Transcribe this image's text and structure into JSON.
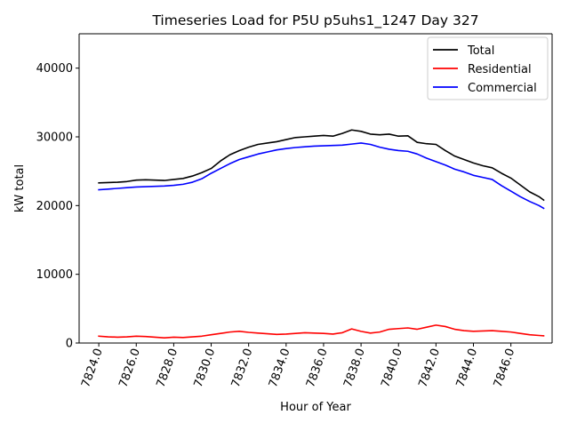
{
  "chart_data": {
    "type": "line",
    "title": "Timeseries Load for P5U p5uhs1_1247  Day 327",
    "xlabel": "Hour of Year",
    "ylabel": "kW total",
    "xlim": [
      7822.95,
      7848.2
    ],
    "ylim": [
      0,
      45000
    ],
    "yticks": [
      0,
      10000,
      20000,
      30000,
      40000
    ],
    "ytick_labels": [
      "0",
      "10000",
      "20000",
      "30000",
      "40000"
    ],
    "xticks": [
      7824,
      7826,
      7828,
      7830,
      7832,
      7834,
      7836,
      7838,
      7840,
      7842,
      7844,
      7846
    ],
    "xtick_labels": [
      "7824.0",
      "7826.0",
      "7828.0",
      "7830.0",
      "7832.0",
      "7834.0",
      "7836.0",
      "7838.0",
      "7840.0",
      "7842.0",
      "7844.0",
      "7846.0"
    ],
    "legend_position": "upper right",
    "series": [
      {
        "name": "Total",
        "color": "#000000",
        "points": [
          [
            7824.0,
            23300
          ],
          [
            7824.5,
            23350
          ],
          [
            7825.0,
            23400
          ],
          [
            7825.5,
            23500
          ],
          [
            7826.0,
            23700
          ],
          [
            7826.5,
            23750
          ],
          [
            7827.0,
            23700
          ],
          [
            7827.5,
            23650
          ],
          [
            7828.0,
            23800
          ],
          [
            7828.5,
            23950
          ],
          [
            7829.0,
            24300
          ],
          [
            7829.5,
            24800
          ],
          [
            7830.0,
            25400
          ],
          [
            7830.5,
            26500
          ],
          [
            7831.0,
            27400
          ],
          [
            7831.5,
            28000
          ],
          [
            7832.0,
            28500
          ],
          [
            7832.5,
            28900
          ],
          [
            7833.0,
            29100
          ],
          [
            7833.5,
            29300
          ],
          [
            7834.0,
            29600
          ],
          [
            7834.5,
            29900
          ],
          [
            7835.0,
            30000
          ],
          [
            7835.5,
            30100
          ],
          [
            7836.0,
            30200
          ],
          [
            7836.5,
            30100
          ],
          [
            7837.0,
            30500
          ],
          [
            7837.5,
            31000
          ],
          [
            7838.0,
            30800
          ],
          [
            7838.5,
            30400
          ],
          [
            7839.0,
            30300
          ],
          [
            7839.5,
            30400
          ],
          [
            7840.0,
            30100
          ],
          [
            7840.5,
            30150
          ],
          [
            7841.0,
            29200
          ],
          [
            7841.5,
            29000
          ],
          [
            7842.0,
            28900
          ],
          [
            7842.5,
            28000
          ],
          [
            7843.0,
            27200
          ],
          [
            7843.5,
            26700
          ],
          [
            7844.0,
            26200
          ],
          [
            7844.5,
            25800
          ],
          [
            7845.0,
            25500
          ],
          [
            7845.5,
            24700
          ],
          [
            7846.0,
            24000
          ],
          [
            7846.5,
            23000
          ],
          [
            7847.0,
            22000
          ],
          [
            7847.5,
            21300
          ],
          [
            7847.75,
            20800
          ]
        ]
      },
      {
        "name": "Residential",
        "color": "#ff0000",
        "points": [
          [
            7824.0,
            1000
          ],
          [
            7824.5,
            900
          ],
          [
            7825.0,
            850
          ],
          [
            7825.5,
            900
          ],
          [
            7826.0,
            1000
          ],
          [
            7826.5,
            950
          ],
          [
            7827.0,
            850
          ],
          [
            7827.5,
            750
          ],
          [
            7828.0,
            850
          ],
          [
            7828.5,
            800
          ],
          [
            7829.0,
            900
          ],
          [
            7829.5,
            1000
          ],
          [
            7830.0,
            1200
          ],
          [
            7830.5,
            1400
          ],
          [
            7831.0,
            1600
          ],
          [
            7831.5,
            1700
          ],
          [
            7832.0,
            1550
          ],
          [
            7832.5,
            1450
          ],
          [
            7833.0,
            1350
          ],
          [
            7833.5,
            1250
          ],
          [
            7834.0,
            1300
          ],
          [
            7834.5,
            1400
          ],
          [
            7835.0,
            1500
          ],
          [
            7835.5,
            1450
          ],
          [
            7836.0,
            1400
          ],
          [
            7836.5,
            1300
          ],
          [
            7837.0,
            1500
          ],
          [
            7837.5,
            2050
          ],
          [
            7838.0,
            1700
          ],
          [
            7838.5,
            1450
          ],
          [
            7839.0,
            1600
          ],
          [
            7839.5,
            2000
          ],
          [
            7840.0,
            2100
          ],
          [
            7840.5,
            2200
          ],
          [
            7841.0,
            2000
          ],
          [
            7841.5,
            2300
          ],
          [
            7842.0,
            2600
          ],
          [
            7842.5,
            2400
          ],
          [
            7843.0,
            2000
          ],
          [
            7843.5,
            1800
          ],
          [
            7844.0,
            1700
          ],
          [
            7844.5,
            1750
          ],
          [
            7845.0,
            1800
          ],
          [
            7845.5,
            1700
          ],
          [
            7846.0,
            1600
          ],
          [
            7846.5,
            1400
          ],
          [
            7847.0,
            1200
          ],
          [
            7847.5,
            1100
          ],
          [
            7847.75,
            1050
          ]
        ]
      },
      {
        "name": "Commercial",
        "color": "#0000ff",
        "points": [
          [
            7824.0,
            22300
          ],
          [
            7824.5,
            22400
          ],
          [
            7825.0,
            22500
          ],
          [
            7825.5,
            22600
          ],
          [
            7826.0,
            22700
          ],
          [
            7826.5,
            22750
          ],
          [
            7827.0,
            22800
          ],
          [
            7827.5,
            22850
          ],
          [
            7828.0,
            22950
          ],
          [
            7828.5,
            23100
          ],
          [
            7829.0,
            23400
          ],
          [
            7829.5,
            23900
          ],
          [
            7830.0,
            24700
          ],
          [
            7830.5,
            25400
          ],
          [
            7831.0,
            26100
          ],
          [
            7831.5,
            26700
          ],
          [
            7832.0,
            27100
          ],
          [
            7832.5,
            27500
          ],
          [
            7833.0,
            27800
          ],
          [
            7833.5,
            28100
          ],
          [
            7834.0,
            28300
          ],
          [
            7834.5,
            28450
          ],
          [
            7835.0,
            28550
          ],
          [
            7835.5,
            28650
          ],
          [
            7836.0,
            28700
          ],
          [
            7836.5,
            28750
          ],
          [
            7837.0,
            28800
          ],
          [
            7837.5,
            28950
          ],
          [
            7838.0,
            29100
          ],
          [
            7838.5,
            28900
          ],
          [
            7839.0,
            28500
          ],
          [
            7839.5,
            28200
          ],
          [
            7840.0,
            28000
          ],
          [
            7840.5,
            27900
          ],
          [
            7841.0,
            27500
          ],
          [
            7841.5,
            26900
          ],
          [
            7842.0,
            26400
          ],
          [
            7842.5,
            25900
          ],
          [
            7843.0,
            25300
          ],
          [
            7843.5,
            24900
          ],
          [
            7844.0,
            24400
          ],
          [
            7844.5,
            24100
          ],
          [
            7845.0,
            23800
          ],
          [
            7845.5,
            22900
          ],
          [
            7846.0,
            22100
          ],
          [
            7846.5,
            21300
          ],
          [
            7847.0,
            20600
          ],
          [
            7847.5,
            20000
          ],
          [
            7847.75,
            19600
          ]
        ]
      }
    ]
  }
}
